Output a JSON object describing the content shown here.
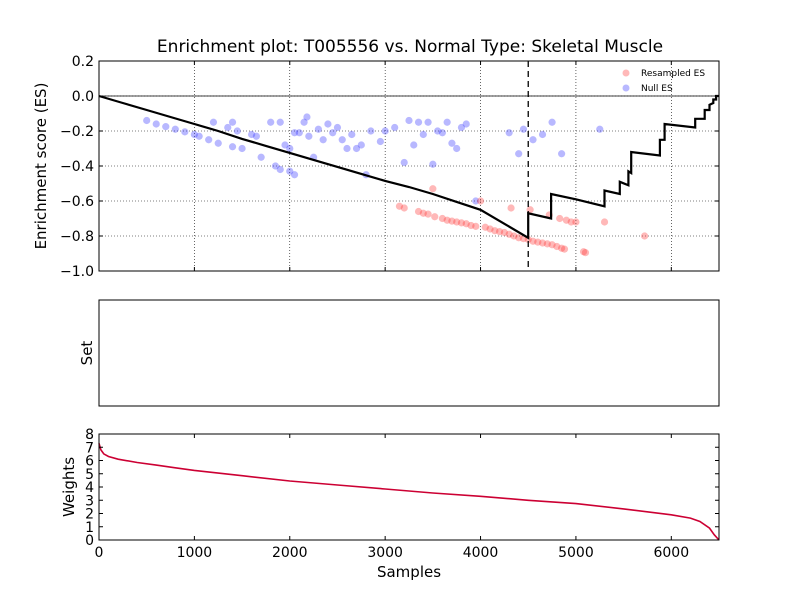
{
  "chart_data": {
    "type": "scatter",
    "title": "Enrichment plot: T005556 vs. Normal Type: Skeletal Muscle",
    "xlabel": "Samples",
    "xlim": [
      0,
      6500
    ],
    "xticks": [
      "0",
      "1000",
      "2000",
      "3000",
      "4000",
      "5000",
      "6000"
    ],
    "xtick_values": [
      0,
      1000,
      2000,
      3000,
      4000,
      5000,
      6000
    ],
    "panels": {
      "es": {
        "ylabel": "Enrichment score (ES)",
        "ylim": [
          -1.0,
          0.2
        ],
        "yticks": [
          "−1.0",
          "−0.8",
          "−0.6",
          "−0.4",
          "−0.2",
          "0.0",
          "0.2"
        ],
        "ytick_values": [
          -1.0,
          -0.8,
          -0.6,
          -0.4,
          -0.2,
          0.0,
          0.2
        ],
        "grid": true,
        "legend_position": "top-right",
        "marker_x": 4500,
        "running_es": {
          "name": "",
          "color": "#000000",
          "points": [
            [
              0,
              0
            ],
            [
              250,
              -0.04
            ],
            [
              500,
              -0.08
            ],
            [
              750,
              -0.12
            ],
            [
              1000,
              -0.16
            ],
            [
              1250,
              -0.2
            ],
            [
              1500,
              -0.245
            ],
            [
              1750,
              -0.285
            ],
            [
              2000,
              -0.325
            ],
            [
              2250,
              -0.365
            ],
            [
              2500,
              -0.405
            ],
            [
              2750,
              -0.445
            ],
            [
              3000,
              -0.485
            ],
            [
              3250,
              -0.52
            ],
            [
              3500,
              -0.56
            ],
            [
              3750,
              -0.605
            ],
            [
              4000,
              -0.65
            ],
            [
              4250,
              -0.73
            ],
            [
              4500,
              -0.81
            ],
            [
              4500,
              -0.67
            ],
            [
              4740,
              -0.7
            ],
            [
              4740,
              -0.56
            ],
            [
              5000,
              -0.59
            ],
            [
              5300,
              -0.63
            ],
            [
              5300,
              -0.54
            ],
            [
              5460,
              -0.56
            ],
            [
              5460,
              -0.49
            ],
            [
              5550,
              -0.51
            ],
            [
              5550,
              -0.43
            ],
            [
              5580,
              -0.44
            ],
            [
              5580,
              -0.32
            ],
            [
              5880,
              -0.34
            ],
            [
              5880,
              -0.25
            ],
            [
              5930,
              -0.25
            ],
            [
              5930,
              -0.16
            ],
            [
              6250,
              -0.18
            ],
            [
              6250,
              -0.13
            ],
            [
              6350,
              -0.13
            ],
            [
              6350,
              -0.08
            ],
            [
              6400,
              -0.08
            ],
            [
              6400,
              -0.05
            ],
            [
              6440,
              -0.04
            ],
            [
              6440,
              -0.02
            ],
            [
              6470,
              -0.02
            ],
            [
              6470,
              0.0
            ],
            [
              6500,
              0.0
            ]
          ]
        },
        "resampled_es": {
          "name": "Resampled ES",
          "color": "#ff3333",
          "points": [
            [
              3150,
              -0.63
            ],
            [
              3200,
              -0.64
            ],
            [
              3350,
              -0.66
            ],
            [
              3400,
              -0.67
            ],
            [
              3450,
              -0.675
            ],
            [
              3500,
              -0.53
            ],
            [
              3520,
              -0.69
            ],
            [
              3600,
              -0.7
            ],
            [
              3650,
              -0.71
            ],
            [
              3700,
              -0.715
            ],
            [
              3750,
              -0.72
            ],
            [
              3800,
              -0.725
            ],
            [
              3850,
              -0.73
            ],
            [
              3900,
              -0.74
            ],
            [
              3950,
              -0.745
            ],
            [
              4000,
              -0.6
            ],
            [
              4050,
              -0.75
            ],
            [
              4100,
              -0.76
            ],
            [
              4150,
              -0.77
            ],
            [
              4200,
              -0.775
            ],
            [
              4250,
              -0.78
            ],
            [
              4300,
              -0.79
            ],
            [
              4320,
              -0.64
            ],
            [
              4350,
              -0.8
            ],
            [
              4400,
              -0.81
            ],
            [
              4450,
              -0.815
            ],
            [
              4500,
              -0.82
            ],
            [
              4520,
              -0.65
            ],
            [
              4550,
              -0.83
            ],
            [
              4600,
              -0.835
            ],
            [
              4650,
              -0.84
            ],
            [
              4700,
              -0.845
            ],
            [
              4720,
              -0.68
            ],
            [
              4750,
              -0.85
            ],
            [
              4800,
              -0.86
            ],
            [
              4830,
              -0.7
            ],
            [
              4850,
              -0.87
            ],
            [
              4880,
              -0.875
            ],
            [
              4900,
              -0.71
            ],
            [
              4950,
              -0.72
            ],
            [
              5000,
              -0.72
            ],
            [
              5080,
              -0.89
            ],
            [
              5100,
              -0.895
            ],
            [
              5300,
              -0.72
            ],
            [
              5720,
              -0.8
            ]
          ]
        },
        "null_es": {
          "name": "Null ES",
          "color": "#3333ff",
          "points": [
            [
              500,
              -0.14
            ],
            [
              600,
              -0.16
            ],
            [
              700,
              -0.175
            ],
            [
              800,
              -0.19
            ],
            [
              900,
              -0.205
            ],
            [
              1000,
              -0.22
            ],
            [
              1050,
              -0.23
            ],
            [
              1150,
              -0.25
            ],
            [
              1200,
              -0.15
            ],
            [
              1250,
              -0.27
            ],
            [
              1350,
              -0.18
            ],
            [
              1400,
              -0.15
            ],
            [
              1400,
              -0.29
            ],
            [
              1450,
              -0.2
            ],
            [
              1500,
              -0.3
            ],
            [
              1600,
              -0.22
            ],
            [
              1650,
              -0.23
            ],
            [
              1700,
              -0.35
            ],
            [
              1800,
              -0.15
            ],
            [
              1850,
              -0.4
            ],
            [
              1900,
              -0.15
            ],
            [
              1900,
              -0.42
            ],
            [
              2000,
              -0.3
            ],
            [
              2000,
              -0.43
            ],
            [
              2050,
              -0.45
            ],
            [
              1950,
              -0.28
            ],
            [
              2050,
              -0.21
            ],
            [
              2100,
              -0.21
            ],
            [
              2150,
              -0.15
            ],
            [
              2180,
              -0.12
            ],
            [
              2200,
              -0.23
            ],
            [
              2250,
              -0.35
            ],
            [
              2300,
              -0.19
            ],
            [
              2350,
              -0.25
            ],
            [
              2400,
              -0.16
            ],
            [
              2450,
              -0.21
            ],
            [
              2500,
              -0.18
            ],
            [
              2550,
              -0.25
            ],
            [
              2600,
              -0.3
            ],
            [
              2650,
              -0.22
            ],
            [
              2700,
              -0.3
            ],
            [
              2750,
              -0.28
            ],
            [
              2800,
              -0.45
            ],
            [
              2850,
              -0.2
            ],
            [
              2950,
              -0.26
            ],
            [
              3000,
              -0.2
            ],
            [
              3100,
              -0.18
            ],
            [
              3200,
              -0.38
            ],
            [
              3250,
              -0.14
            ],
            [
              3300,
              -0.28
            ],
            [
              3350,
              -0.15
            ],
            [
              3400,
              -0.22
            ],
            [
              3450,
              -0.15
            ],
            [
              3500,
              -0.39
            ],
            [
              3550,
              -0.2
            ],
            [
              3600,
              -0.21
            ],
            [
              3650,
              -0.15
            ],
            [
              3700,
              -0.27
            ],
            [
              3750,
              -0.3
            ],
            [
              3800,
              -0.18
            ],
            [
              3850,
              -0.16
            ],
            [
              3950,
              -0.6
            ],
            [
              4300,
              -0.21
            ],
            [
              4400,
              -0.33
            ],
            [
              4450,
              -0.19
            ],
            [
              4550,
              -0.25
            ],
            [
              4650,
              -0.22
            ],
            [
              4750,
              -0.15
            ],
            [
              4850,
              -0.33
            ],
            [
              5250,
              -0.19
            ]
          ]
        }
      },
      "set": {
        "ylabel": "Set"
      },
      "weights": {
        "ylabel": "Weights",
        "ylim": [
          0,
          8
        ],
        "yticks": [
          "0",
          "1",
          "2",
          "3",
          "4",
          "5",
          "6",
          "7",
          "8"
        ],
        "ytick_values": [
          0,
          1,
          2,
          3,
          4,
          5,
          6,
          7,
          8
        ],
        "color": "#cc0033",
        "points": [
          [
            0,
            7.3
          ],
          [
            20,
            6.8
          ],
          [
            50,
            6.5
          ],
          [
            100,
            6.3
          ],
          [
            200,
            6.1
          ],
          [
            400,
            5.85
          ],
          [
            600,
            5.65
          ],
          [
            800,
            5.45
          ],
          [
            1000,
            5.25
          ],
          [
            1500,
            4.85
          ],
          [
            2000,
            4.45
          ],
          [
            2500,
            4.15
          ],
          [
            3000,
            3.85
          ],
          [
            3500,
            3.55
          ],
          [
            4000,
            3.3
          ],
          [
            4500,
            3.0
          ],
          [
            5000,
            2.75
          ],
          [
            5500,
            2.35
          ],
          [
            6000,
            1.9
          ],
          [
            6200,
            1.65
          ],
          [
            6300,
            1.4
          ],
          [
            6400,
            0.9
          ],
          [
            6450,
            0.4
          ],
          [
            6500,
            0.0
          ]
        ]
      }
    }
  }
}
